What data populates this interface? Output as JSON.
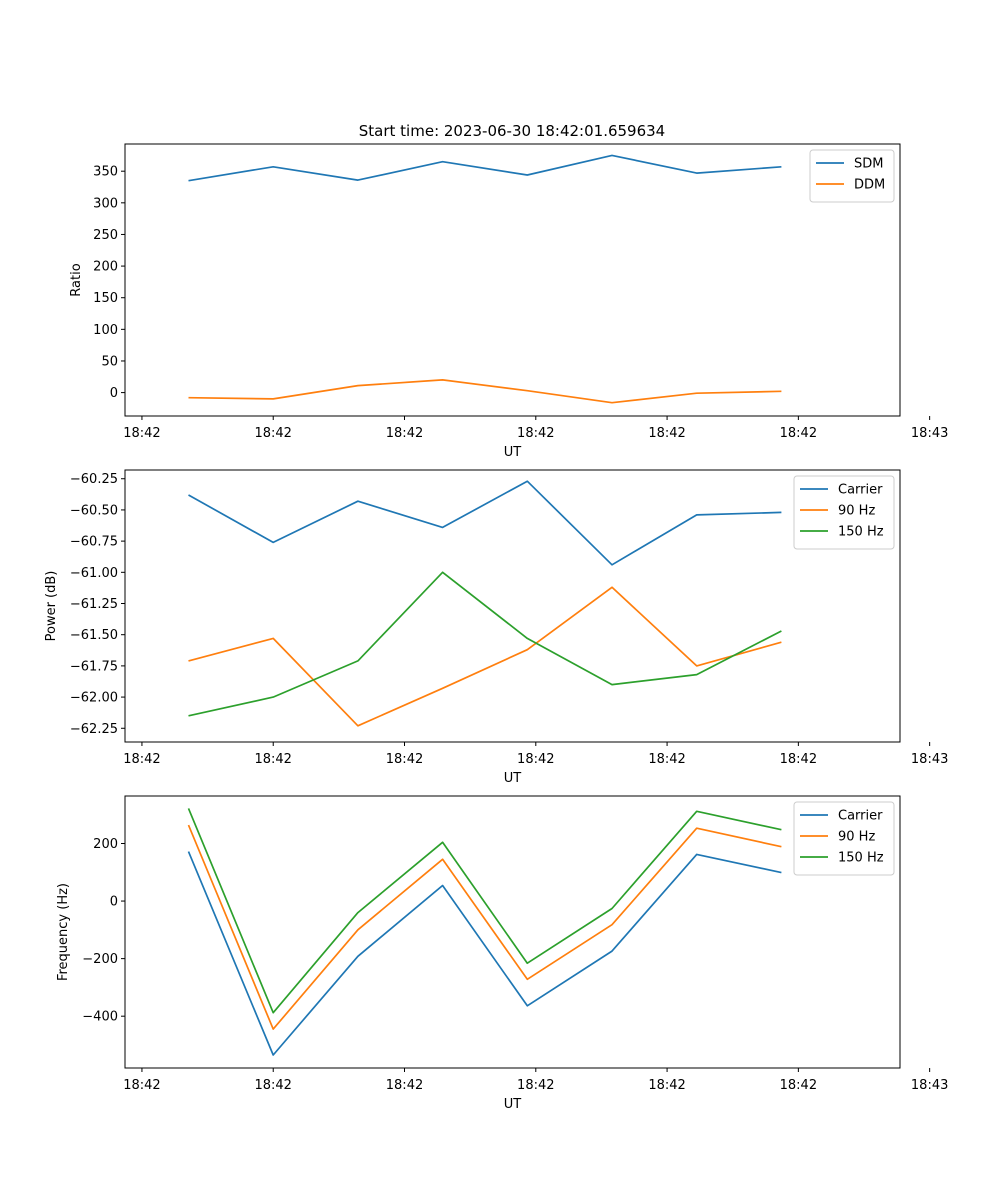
{
  "figure_title": "Start time: 2023-06-30 18:42:01.659634",
  "chart_data": [
    {
      "type": "line",
      "title": "Start time: 2023-06-30 18:42:01.659634",
      "xlabel": "UT",
      "ylabel": "Ratio",
      "x": [
        1,
        2,
        3,
        4,
        5,
        6,
        7,
        8
      ],
      "xlim": [
        0.25,
        9.4
      ],
      "x_ticks": [
        0.45,
        2.0,
        3.55,
        5.1,
        6.65,
        8.2,
        9.75
      ],
      "x_tick_labels": [
        "18:42",
        "18:42",
        "18:42",
        "18:42",
        "18:42",
        "18:42",
        "18:43"
      ],
      "ylim": [
        -37,
        393
      ],
      "y_ticks": [
        0,
        50,
        100,
        150,
        200,
        250,
        300,
        350
      ],
      "y_tick_labels": [
        "0",
        "50",
        "100",
        "150",
        "200",
        "250",
        "300",
        "350"
      ],
      "legend": "top-right",
      "grid": false,
      "series": [
        {
          "name": "SDM",
          "color": "#1f77b4",
          "values": [
            335,
            357,
            336,
            365,
            344,
            375,
            347,
            357
          ]
        },
        {
          "name": "DDM",
          "color": "#ff7f0e",
          "values": [
            -8,
            -10,
            11,
            20,
            3,
            -16,
            -1,
            2
          ]
        }
      ]
    },
    {
      "type": "line",
      "xlabel": "UT",
      "ylabel": "Power (dB)",
      "x": [
        1,
        2,
        3,
        4,
        5,
        6,
        7,
        8
      ],
      "xlim": [
        0.25,
        9.4
      ],
      "x_ticks": [
        0.45,
        2.0,
        3.55,
        5.1,
        6.65,
        8.2,
        9.75
      ],
      "x_tick_labels": [
        "18:42",
        "18:42",
        "18:42",
        "18:42",
        "18:42",
        "18:42",
        "18:43"
      ],
      "ylim": [
        -62.36,
        -60.18
      ],
      "y_ticks": [
        -62.25,
        -62.0,
        -61.75,
        -61.5,
        -61.25,
        -61.0,
        -60.75,
        -60.5,
        -60.25
      ],
      "y_tick_labels": [
        "−62.25",
        "−62.00",
        "−61.75",
        "−61.50",
        "−61.25",
        "−61.00",
        "−60.75",
        "−60.50",
        "−60.25"
      ],
      "legend": "top-right",
      "grid": false,
      "series": [
        {
          "name": "Carrier",
          "color": "#1f77b4",
          "values": [
            -60.38,
            -60.76,
            -60.43,
            -60.64,
            -60.27,
            -60.94,
            -60.54,
            -60.52
          ]
        },
        {
          "name": "90 Hz",
          "color": "#ff7f0e",
          "values": [
            -61.71,
            -61.53,
            -62.23,
            -61.93,
            -61.62,
            -61.12,
            -61.75,
            -61.56
          ]
        },
        {
          "name": "150 Hz",
          "color": "#2ca02c",
          "values": [
            -62.15,
            -62.0,
            -61.71,
            -61.0,
            -61.53,
            -61.9,
            -61.82,
            -61.47
          ]
        }
      ]
    },
    {
      "type": "line",
      "xlabel": "UT",
      "ylabel": "Frequency (Hz)",
      "x": [
        1,
        2,
        3,
        4,
        5,
        6,
        7,
        8
      ],
      "xlim": [
        0.25,
        9.4
      ],
      "x_ticks": [
        0.45,
        2.0,
        3.55,
        5.1,
        6.65,
        8.2,
        9.75
      ],
      "x_tick_labels": [
        "18:42",
        "18:42",
        "18:42",
        "18:42",
        "18:42",
        "18:42",
        "18:43"
      ],
      "ylim": [
        -580,
        365
      ],
      "y_ticks": [
        -400,
        -200,
        0,
        200
      ],
      "y_tick_labels": [
        "−400",
        "−200",
        "0",
        "200"
      ],
      "legend": "top-right",
      "grid": false,
      "series": [
        {
          "name": "Carrier",
          "color": "#1f77b4",
          "values": [
            172,
            -535,
            -192,
            54,
            -364,
            -174,
            162,
            99
          ]
        },
        {
          "name": "90 Hz",
          "color": "#ff7f0e",
          "values": [
            264,
            -445,
            -100,
            145,
            -272,
            -82,
            253,
            189
          ]
        },
        {
          "name": "150 Hz",
          "color": "#2ca02c",
          "values": [
            322,
            -388,
            -40,
            204,
            -216,
            -26,
            312,
            248
          ]
        }
      ]
    }
  ]
}
